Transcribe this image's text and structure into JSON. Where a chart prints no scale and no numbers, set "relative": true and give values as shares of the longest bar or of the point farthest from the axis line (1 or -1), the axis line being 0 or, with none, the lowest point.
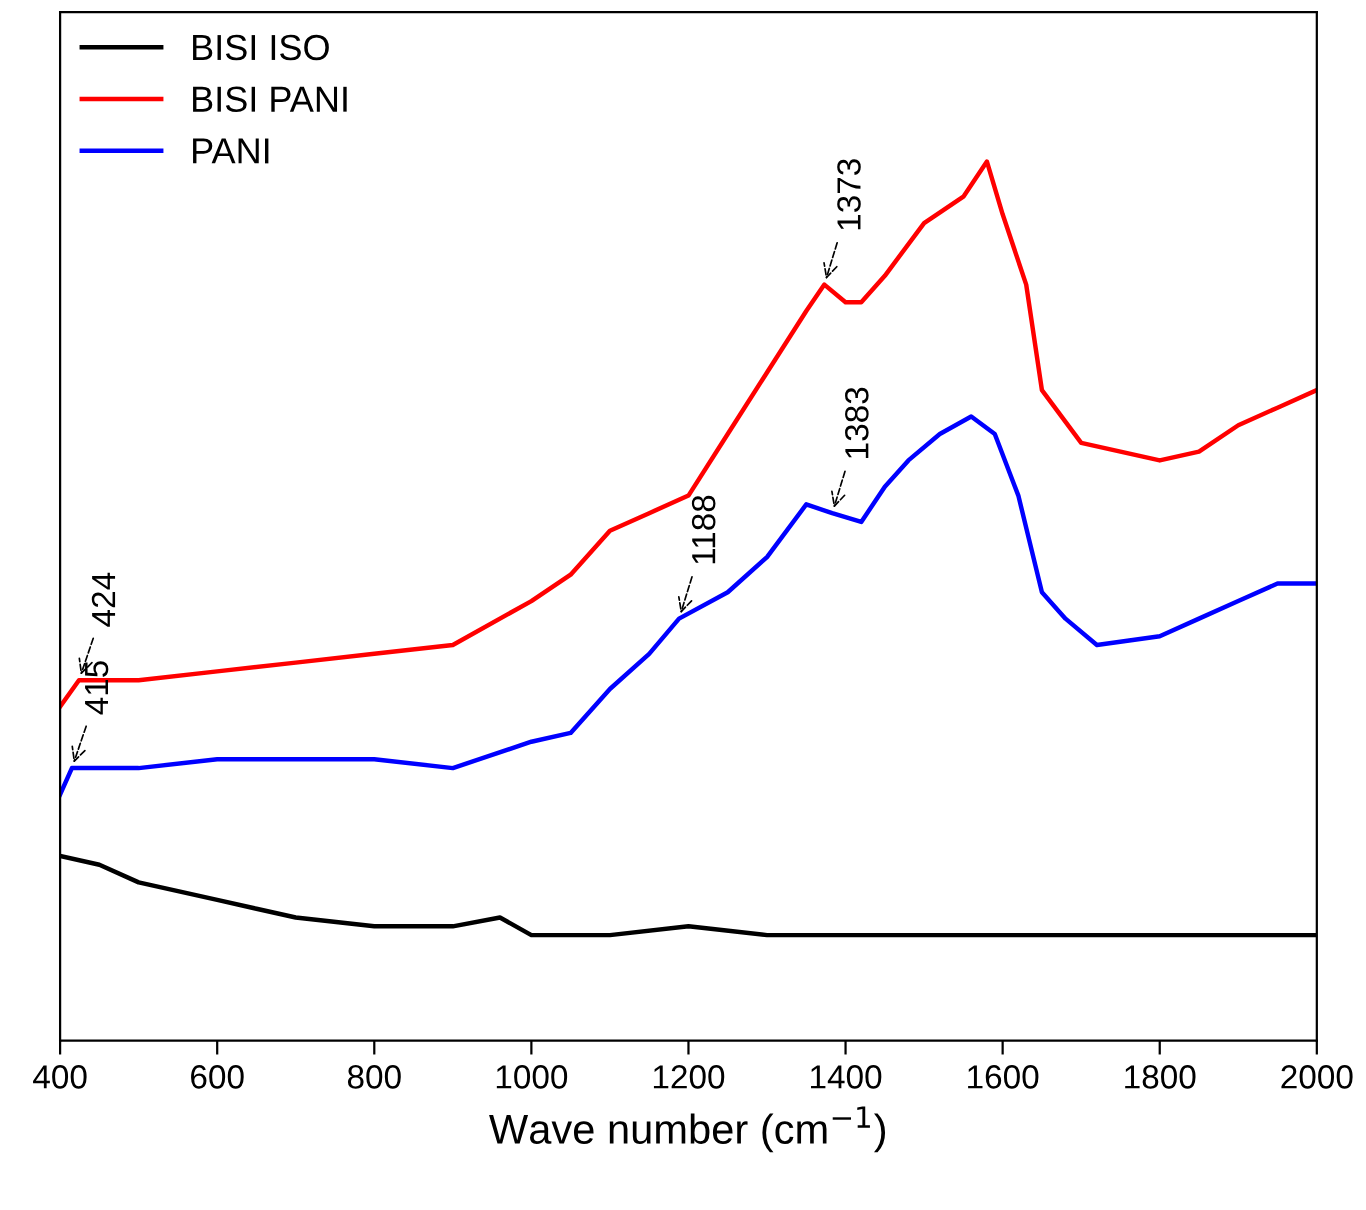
{
  "chart_data": {
    "type": "line",
    "relative": true,
    "xlabel": "Wave number (cm$^{−1}$)",
    "xlim": [
      400,
      2000
    ],
    "xticks": [
      400,
      600,
      800,
      1000,
      1200,
      1400,
      1600,
      1800,
      2000
    ],
    "tick_labels": "x",
    "legend": "top left",
    "grid": false,
    "line_style": "solid",
    "series": [
      {
        "name": "BISI ISO",
        "color": "#000000",
        "x": [
          400,
          450,
          500,
          550,
          600,
          650,
          700,
          800,
          900,
          960,
          1000,
          1100,
          1200,
          1300,
          1400,
          1500,
          1600,
          1700,
          1800,
          1900,
          2000
        ],
        "values": [
          0.21,
          0.2,
          0.18,
          0.17,
          0.16,
          0.15,
          0.14,
          0.13,
          0.13,
          0.14,
          0.12,
          0.12,
          0.13,
          0.12,
          0.12,
          0.12,
          0.12,
          0.12,
          0.12,
          0.12,
          0.12
        ]
      },
      {
        "name": "BISI PANI",
        "color": "#ff0000",
        "x": [
          400,
          424,
          500,
          600,
          700,
          800,
          900,
          1000,
          1050,
          1100,
          1150,
          1200,
          1250,
          1300,
          1350,
          1373,
          1400,
          1420,
          1450,
          1500,
          1550,
          1580,
          1600,
          1630,
          1650,
          1700,
          1750,
          1800,
          1850,
          1900,
          1950,
          2000
        ],
        "values": [
          0.38,
          0.41,
          0.41,
          0.42,
          0.43,
          0.44,
          0.45,
          0.5,
          0.53,
          0.58,
          0.6,
          0.62,
          0.69,
          0.76,
          0.83,
          0.86,
          0.84,
          0.84,
          0.87,
          0.93,
          0.96,
          1.0,
          0.94,
          0.86,
          0.74,
          0.68,
          0.67,
          0.66,
          0.67,
          0.7,
          0.72,
          0.74
        ]
      },
      {
        "name": "PANI",
        "color": "#0000ff",
        "x": [
          400,
          415,
          500,
          600,
          700,
          800,
          900,
          1000,
          1050,
          1100,
          1150,
          1188,
          1250,
          1300,
          1350,
          1383,
          1420,
          1450,
          1480,
          1520,
          1560,
          1590,
          1620,
          1650,
          1680,
          1720,
          1800,
          1850,
          1900,
          1950,
          2000
        ],
        "values": [
          0.28,
          0.31,
          0.31,
          0.32,
          0.32,
          0.32,
          0.31,
          0.34,
          0.35,
          0.4,
          0.44,
          0.48,
          0.51,
          0.55,
          0.61,
          0.6,
          0.59,
          0.63,
          0.66,
          0.69,
          0.71,
          0.69,
          0.62,
          0.51,
          0.48,
          0.45,
          0.46,
          0.48,
          0.5,
          0.52,
          0.52
        ]
      }
    ],
    "annotations": [
      {
        "text": "424",
        "x": 424,
        "y": 0.41
      },
      {
        "text": "415",
        "x": 415,
        "y": 0.31
      },
      {
        "text": "1188",
        "x": 1188,
        "y": 0.48
      },
      {
        "text": "1383",
        "x": 1383,
        "y": 0.6
      },
      {
        "text": "1373",
        "x": 1373,
        "y": 0.86
      }
    ]
  }
}
